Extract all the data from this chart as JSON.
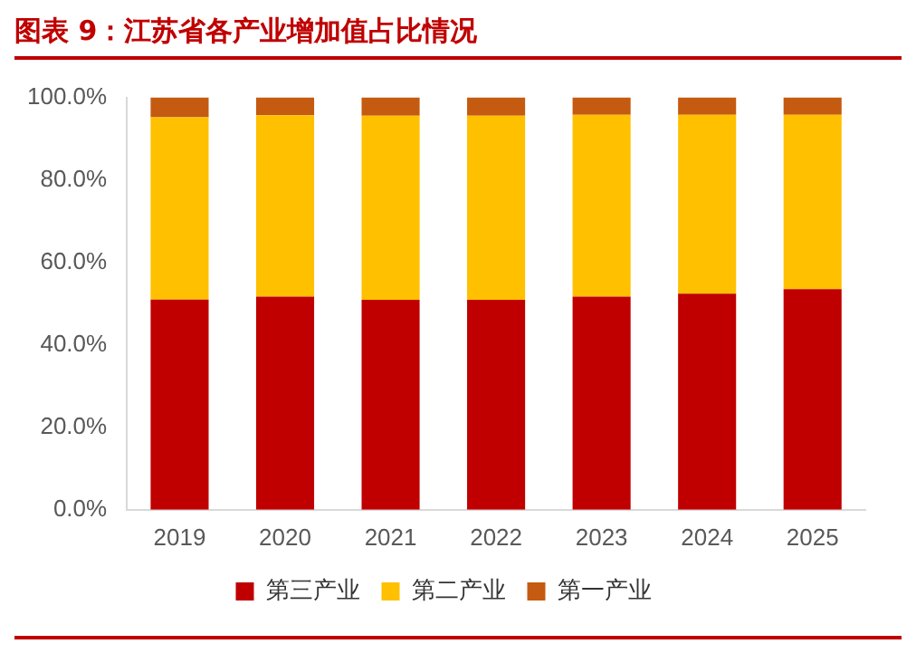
{
  "chart_data": {
    "type": "bar",
    "title": "图表 9：江苏省各产业增加值占比情况",
    "categories": [
      "2019",
      "2020",
      "2021",
      "2022",
      "2023",
      "2024",
      "2025"
    ],
    "series": [
      {
        "name": "第三产业",
        "color": "#c00000",
        "values": [
          51,
          51.7,
          50.9,
          50.9,
          51.7,
          52.4,
          53.5
        ]
      },
      {
        "name": "第二产业",
        "color": "#ffc000",
        "values": [
          44.2,
          44,
          44.7,
          44.7,
          44.1,
          43.4,
          42.3
        ]
      },
      {
        "name": "第一产业",
        "color": "#c55a11",
        "values": [
          4.8,
          4.3,
          4.4,
          4.4,
          4.2,
          4.2,
          4.2
        ]
      }
    ],
    "stacked": true,
    "ylim": [
      0,
      100
    ],
    "yticks": [
      {
        "value": 0,
        "label": "0.0%"
      },
      {
        "value": 20,
        "label": "20.0%"
      },
      {
        "value": 40,
        "label": "40.0%"
      },
      {
        "value": 60,
        "label": "60.0%"
      },
      {
        "value": 80,
        "label": "80.0%"
      },
      {
        "value": 100,
        "label": "100.0%"
      }
    ],
    "grid": false,
    "legend": "bottom"
  }
}
